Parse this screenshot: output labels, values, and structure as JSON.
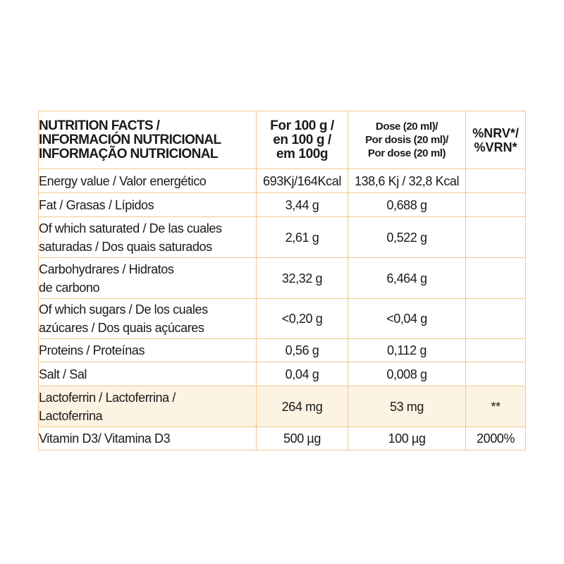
{
  "table": {
    "header": {
      "name_lines": [
        "NUTRITION FACTS /",
        "INFORMACIÓN NUTRICIONAL",
        "INFORMAÇÃO NUTRICIONAL"
      ],
      "per100_lines": [
        "For 100 g /",
        "en 100 g /",
        "em 100g"
      ],
      "dose_lines": [
        "Dose (20 ml)/",
        "Por dosis (20 ml)/",
        "Por dose (20 ml)"
      ],
      "nrv_lines": [
        "%NRV*/",
        "%VRN*"
      ]
    },
    "rows": [
      {
        "name": [
          "Energy value / Valor energético"
        ],
        "per100": "693Kj/164Kcal",
        "dose": "138,6 Kj / 32,8 Kcal",
        "nrv": ""
      },
      {
        "name": [
          "Fat / Grasas / Lípidos"
        ],
        "per100": "3,44 g",
        "dose": "0,688 g",
        "nrv": ""
      },
      {
        "name": [
          "Of which saturated / De las cuales",
          "saturadas / Dos quais saturados"
        ],
        "per100": "2,61 g",
        "dose": "0,522 g",
        "nrv": ""
      },
      {
        "name": [
          "Carbohydrares / Hidratos",
          "de carbono"
        ],
        "per100": "32,32 g",
        "dose": "6,464 g",
        "nrv": ""
      },
      {
        "name": [
          "Of which sugars / De los cuales",
          "azúcares / Dos quais açúcares"
        ],
        "per100": "<0,20 g",
        "dose": "<0,04 g",
        "nrv": ""
      },
      {
        "name": [
          "Proteins / Proteínas"
        ],
        "per100": "0,56 g",
        "dose": "0,112 g",
        "nrv": ""
      },
      {
        "name": [
          "Salt / Sal"
        ],
        "per100": "0,04 g",
        "dose": "0,008 g",
        "nrv": ""
      },
      {
        "name": [
          "Lactoferrin / Lactoferrina /",
          "Lactoferrina"
        ],
        "per100": "264 mg",
        "dose": "53 mg",
        "nrv": "**"
      },
      {
        "name": [
          "Vitamin D3/ Vitamina D3"
        ],
        "per100": "500 µg",
        "dose": "100 µg",
        "nrv": "2000%"
      }
    ]
  },
  "colors": {
    "border": "#f2c78c",
    "highlight_row": "#fdf3e3",
    "text": "#1a1a1a"
  }
}
